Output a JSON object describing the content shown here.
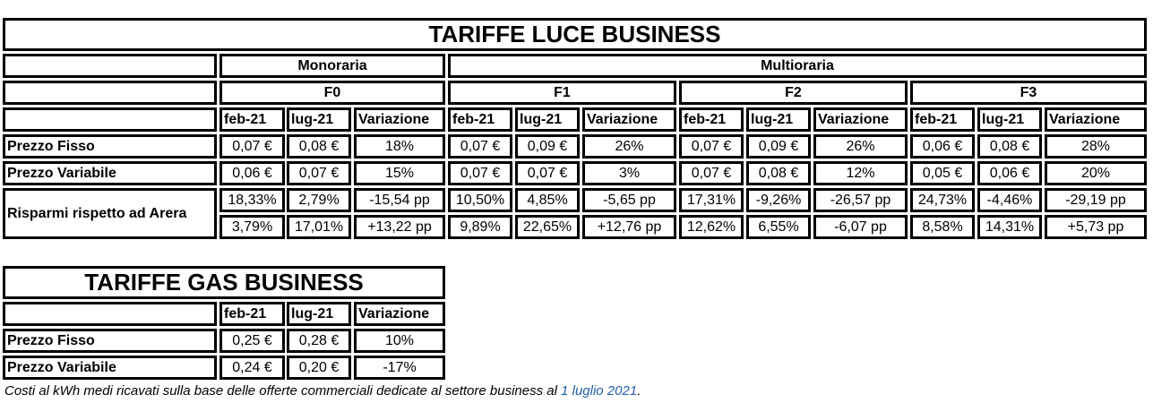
{
  "luce": {
    "title": "TARIFFE LUCE BUSINESS",
    "groups": {
      "monoraria": "Monoraria",
      "multioraria": "Multioraria"
    },
    "bands": [
      "F0",
      "F1",
      "F2",
      "F3"
    ],
    "subheaders": [
      "feb-21",
      "lug-21",
      "Variazione"
    ],
    "rows": [
      {
        "label": "Prezzo Fisso",
        "values": [
          "0,07 €",
          "0,08 €",
          "18%",
          "0,07 €",
          "0,09 €",
          "26%",
          "0,07 €",
          "0,09 €",
          "26%",
          "0,06 €",
          "0,08 €",
          "28%"
        ]
      },
      {
        "label": "Prezzo Variabile",
        "values": [
          "0,06 €",
          "0,07 €",
          "15%",
          "0,07 €",
          "0,07 €",
          "3%",
          "0,07 €",
          "0,08 €",
          "12%",
          "0,05 €",
          "0,06 €",
          "20%"
        ]
      }
    ],
    "savings": {
      "label": "Risparmi rispetto ad Arera",
      "rows": [
        [
          "18,33%",
          "2,79%",
          "-15,54 pp",
          "10,50%",
          "4,85%",
          "-5,65 pp",
          "17,31%",
          "-9,26%",
          "-26,57 pp",
          "24,73%",
          "-4,46%",
          "-29,19 pp"
        ],
        [
          "3,79%",
          "17,01%",
          "+13,22 pp",
          "9,89%",
          "22,65%",
          "+12,76 pp",
          "12,62%",
          "6,55%",
          "-6,07 pp",
          "8,58%",
          "14,31%",
          "+5,73 pp"
        ]
      ]
    }
  },
  "gas": {
    "title": "TARIFFE GAS BUSINESS",
    "subheaders": [
      "feb-21",
      "lug-21",
      "Variazione"
    ],
    "rows": [
      {
        "label": "Prezzo Fisso",
        "values": [
          "0,25 €",
          "0,28 €",
          "10%"
        ]
      },
      {
        "label": "Prezzo Variabile",
        "values": [
          "0,24 €",
          "0,20 €",
          "-17%"
        ]
      }
    ]
  },
  "note": {
    "text": "Costi al kWh medi ricavati sulla base delle offerte commerciali dedicate al settore business al ",
    "link": "1 luglio 2021",
    "end": "."
  }
}
